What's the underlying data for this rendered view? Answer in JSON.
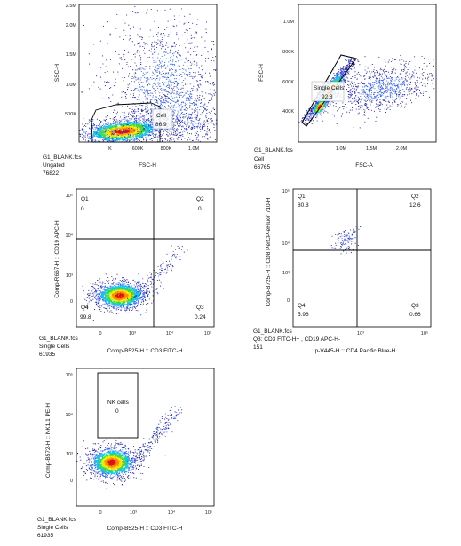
{
  "chart_data": [
    {
      "type": "scatter",
      "xlabel": "FSC-H",
      "ylabel": "SSC-H",
      "x_ticks": [
        "K",
        "600K",
        "800K",
        "1.0M"
      ],
      "y_ticks": [
        "500K",
        "1.0M",
        "1.5M",
        "2.0M",
        "2.5M"
      ],
      "xlim": [
        300000,
        1150000
      ],
      "ylim": [
        0,
        2700000
      ],
      "info": {
        "file": "G1_BLANK.fcs",
        "population": "Ungated",
        "count": "76822"
      },
      "gate": {
        "name": "Cell",
        "value": "86.9"
      },
      "density": {
        "center": [
          470000,
          220000
        ],
        "spread": [
          90000,
          60000
        ]
      }
    },
    {
      "type": "scatter",
      "xlabel": "FSC-A",
      "ylabel": "FSC-H",
      "x_ticks": [
        "1.0M",
        "1.5M",
        "2.0M"
      ],
      "y_ticks": [
        "400K",
        "600K",
        "800K",
        "1.0M"
      ],
      "xlim": [
        300000,
        2600000
      ],
      "ylim": [
        250000,
        1150000
      ],
      "info": {
        "file": "G1_BLANK.fcs",
        "population": "Cell",
        "count": "66765"
      },
      "gate": {
        "name": "Single Cells",
        "value": "92.8"
      },
      "density": {
        "center": [
          700000,
          520000
        ],
        "spread": [
          150000,
          80000
        ]
      }
    },
    {
      "type": "scatter",
      "xlabel": "Comp-B525-H :: CD3 FITC-H",
      "ylabel": "Comp-R667-H :: CD19 APC-H",
      "x_ticks": [
        "0",
        "10³",
        "10⁴",
        "10⁵"
      ],
      "y_ticks": [
        "0",
        "10³",
        "10⁴",
        "10⁵"
      ],
      "scale": "log",
      "info": {
        "file": "G1_BLANK.fcs",
        "population": "Single Cells",
        "count": "61935"
      },
      "quadrants": [
        {
          "name": "Q1",
          "value": "0"
        },
        {
          "name": "Q2",
          "value": "0"
        },
        {
          "name": "Q3",
          "value": "0.24"
        },
        {
          "name": "Q4",
          "value": "99.8"
        }
      ]
    },
    {
      "type": "scatter",
      "xlabel": "p-V445-H :: CD4 Pacific Blue-H",
      "ylabel": "Comp-B725-H :: CD8 PerCP-eFluor 710-H",
      "x_ticks": [
        "10³",
        "10⁵"
      ],
      "y_ticks": [
        "0",
        "10³",
        "10⁴",
        "10⁵"
      ],
      "scale": "log",
      "info": {
        "file": "G1_BLANK.fcs",
        "population": "Q3: CD3 FITC-H+ , CD19 APC-H-",
        "count": "151"
      },
      "quadrants": [
        {
          "name": "Q1",
          "value": "80.8"
        },
        {
          "name": "Q2",
          "value": "12.6"
        },
        {
          "name": "Q3",
          "value": "0.66"
        },
        {
          "name": "Q4",
          "value": "5.96"
        }
      ]
    },
    {
      "type": "scatter",
      "xlabel": "Comp-B525-H :: CD3 FITC-H",
      "ylabel": "Comp-B572-H :: NK1.1 PE-H",
      "x_ticks": [
        "0",
        "10³",
        "10⁴",
        "10⁵"
      ],
      "y_ticks": [
        "0",
        "10³",
        "10⁴",
        "10⁵"
      ],
      "scale": "log",
      "info": {
        "file": "G1_BLANK.fcs",
        "population": "Single Cells",
        "count": "61935"
      },
      "gate": {
        "name": "NK cells",
        "value": "0"
      }
    }
  ],
  "colors": {
    "sparse": "#1a1aa8",
    "mid": "#2f5bff",
    "cyan": "#12c7e8",
    "green": "#3fdc3f",
    "yellow": "#f2e600",
    "orange": "#ff8a00",
    "red": "#e01010",
    "gate": "#000000"
  }
}
